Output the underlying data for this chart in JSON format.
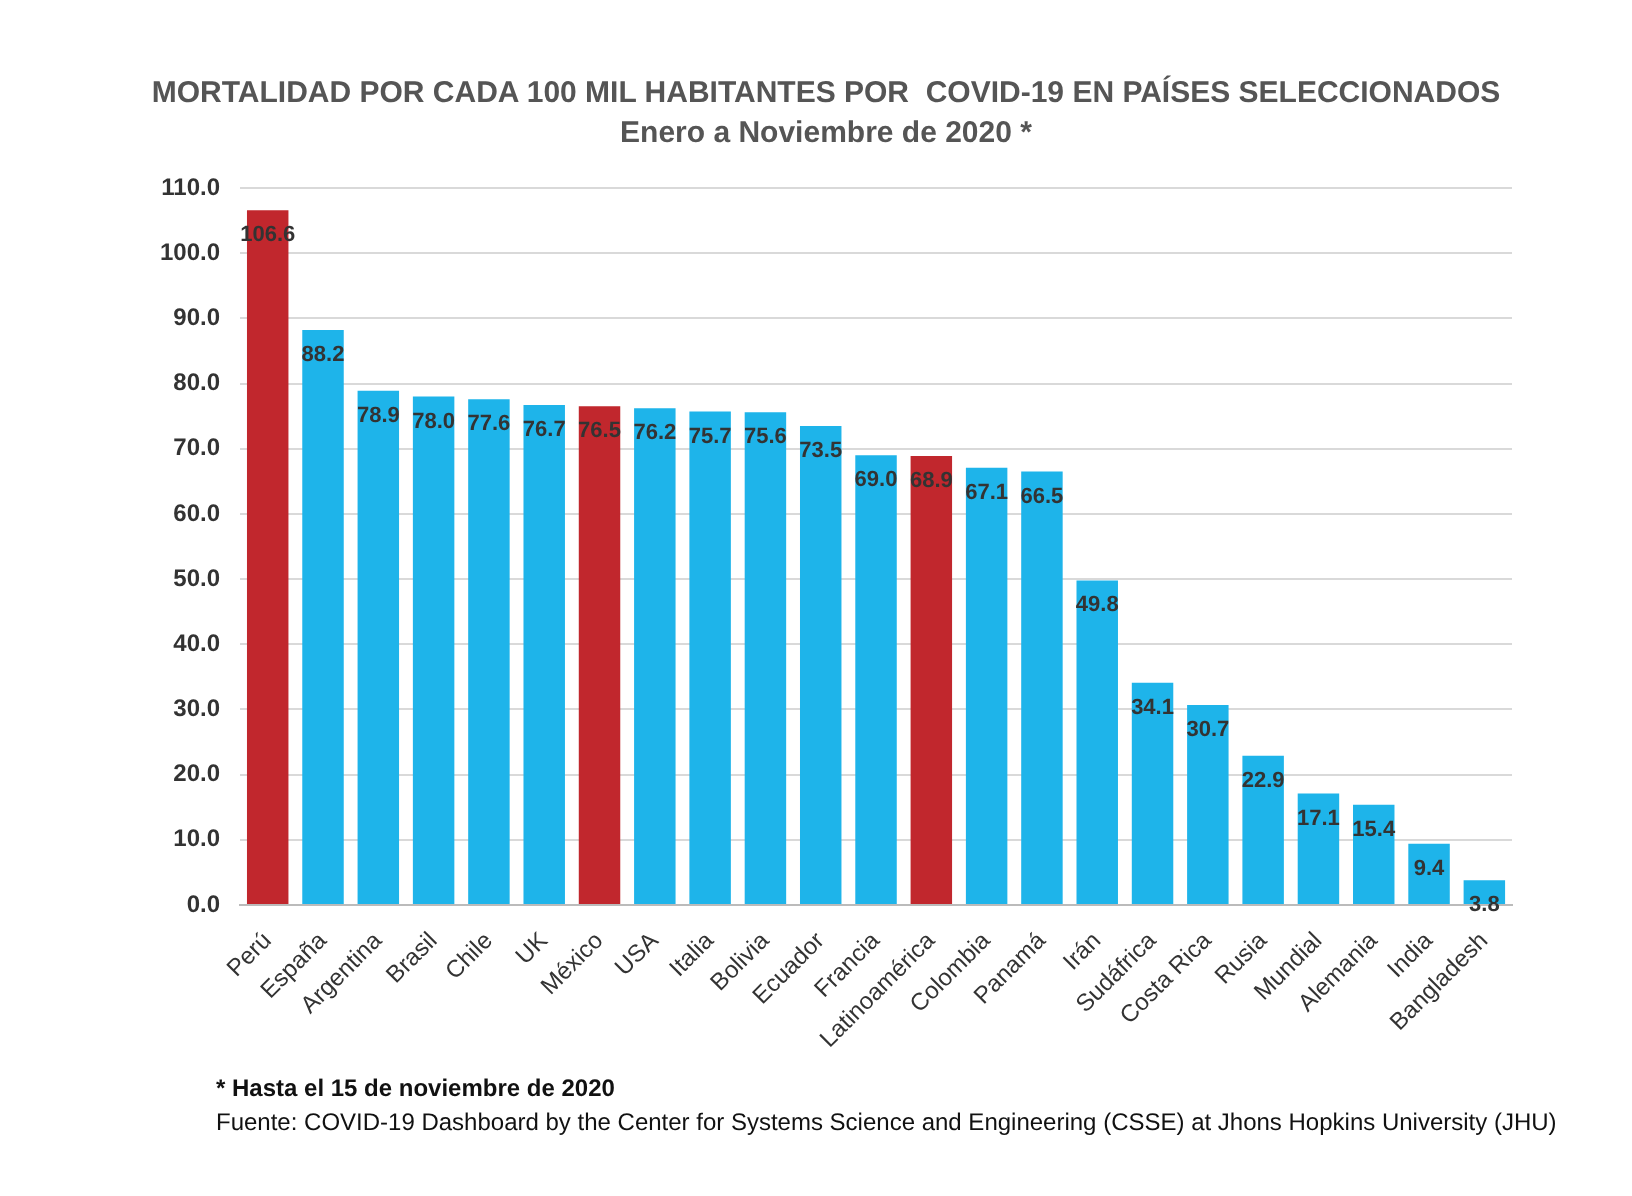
{
  "chart_data": {
    "type": "bar",
    "title": "MORTALIDAD POR CADA 100 MIL HABITANTES POR  COVID-19 EN PAÍSES SELECCIONADOS",
    "subtitle": "Enero a Noviembre de 2020 *",
    "categories": [
      "Perú",
      "España",
      "Argentina",
      "Brasil",
      "Chile",
      "UK",
      "México",
      "USA",
      "Italia",
      "Bolivia",
      "Ecuador",
      "Francia",
      "Latinoamérica",
      "Colombia",
      "Panamá",
      "Irán",
      "Sudáfrica",
      "Costa Rica",
      "Rusia",
      "Mundial",
      "Alemania",
      "India",
      "Bangladesh"
    ],
    "values": [
      106.6,
      88.2,
      78.9,
      78.0,
      77.6,
      76.7,
      76.5,
      76.2,
      75.7,
      75.6,
      73.5,
      69.0,
      68.9,
      67.1,
      66.5,
      49.8,
      34.1,
      30.7,
      22.9,
      17.1,
      15.4,
      9.4,
      3.8
    ],
    "value_labels": [
      "106.6",
      "88.2",
      "78.9",
      "78.0",
      "77.6",
      "76.7",
      "76.5",
      "76.2",
      "75.7",
      "75.6",
      "73.5",
      "69.0",
      "68.9",
      "67.1",
      "66.5",
      "49.8",
      "34.1",
      "30.7",
      "22.9",
      "17.1",
      "15.4",
      "9.4",
      "3.8"
    ],
    "colors": [
      "#c1272d",
      "#1eb4ea",
      "#1eb4ea",
      "#1eb4ea",
      "#1eb4ea",
      "#1eb4ea",
      "#c1272d",
      "#1eb4ea",
      "#1eb4ea",
      "#1eb4ea",
      "#1eb4ea",
      "#1eb4ea",
      "#c1272d",
      "#1eb4ea",
      "#1eb4ea",
      "#1eb4ea",
      "#1eb4ea",
      "#1eb4ea",
      "#1eb4ea",
      "#1eb4ea",
      "#1eb4ea",
      "#1eb4ea",
      "#1eb4ea"
    ],
    "ylim": [
      0,
      110
    ],
    "yticks": [
      {
        "value": 0,
        "label": "0.0"
      },
      {
        "value": 10,
        "label": "10.0"
      },
      {
        "value": 20,
        "label": "20.0"
      },
      {
        "value": 30,
        "label": "30.0"
      },
      {
        "value": 40,
        "label": "40.0"
      },
      {
        "value": 50,
        "label": "50.0"
      },
      {
        "value": 60,
        "label": "60.0"
      },
      {
        "value": 70,
        "label": "70.0"
      },
      {
        "value": 80,
        "label": "80.0"
      },
      {
        "value": 90,
        "label": "90.0"
      },
      {
        "value": 100,
        "label": "100.0"
      },
      {
        "value": 110,
        "label": "110.0"
      }
    ],
    "grid": "y",
    "legend": false,
    "annotations": [
      "* Hasta el 15 de noviembre de 2020",
      "Fuente: COVID-19 Dashboard by the Center for Systems Science and Engineering (CSSE) at Jhons Hopkins University (JHU)"
    ]
  }
}
